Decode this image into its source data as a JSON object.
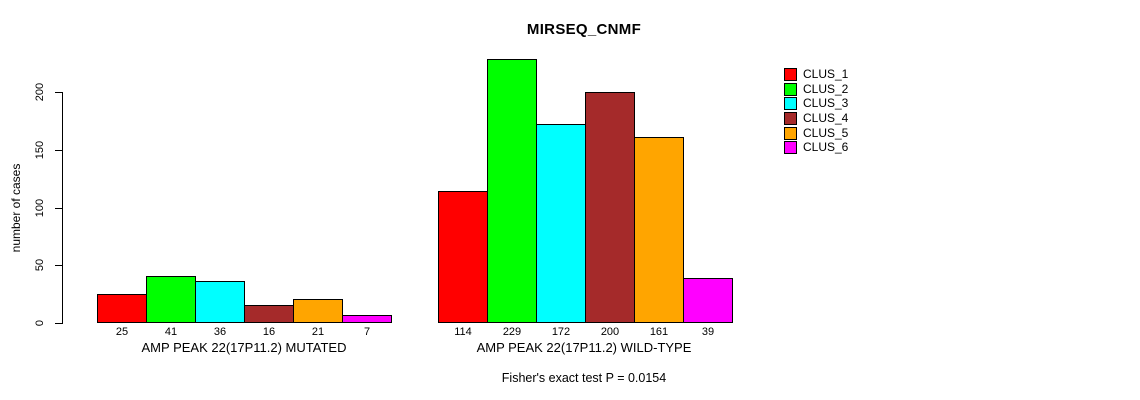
{
  "chart_data": {
    "type": "bar",
    "title": "MIRSEQ_CNMF",
    "xlabel": "",
    "ylabel": "number of cases",
    "yticks": [
      0,
      50,
      100,
      150,
      200
    ],
    "ylim": [
      0,
      240
    ],
    "grid": false,
    "legend_position": "top-right",
    "legend_entries": [
      {
        "label": "CLUS_1",
        "color": "#FF0000"
      },
      {
        "label": "CLUS_2",
        "color": "#00FF00"
      },
      {
        "label": "CLUS_3",
        "color": "#00FFFF"
      },
      {
        "label": "CLUS_4",
        "color": "#A52A2A"
      },
      {
        "label": "CLUS_5",
        "color": "#FFA500"
      },
      {
        "label": "CLUS_6",
        "color": "#FF00FF"
      }
    ],
    "groups": [
      {
        "label": "AMP PEAK 22(17P11.2) MUTATED",
        "values": [
          25,
          41,
          36,
          16,
          21,
          7
        ]
      },
      {
        "label": "AMP PEAK 22(17P11.2) WILD-TYPE",
        "values": [
          114,
          229,
          172,
          200,
          161,
          39
        ]
      }
    ],
    "bar_value_labels_shown": true,
    "annotation": "Fisher's exact test P = 0.0154"
  }
}
